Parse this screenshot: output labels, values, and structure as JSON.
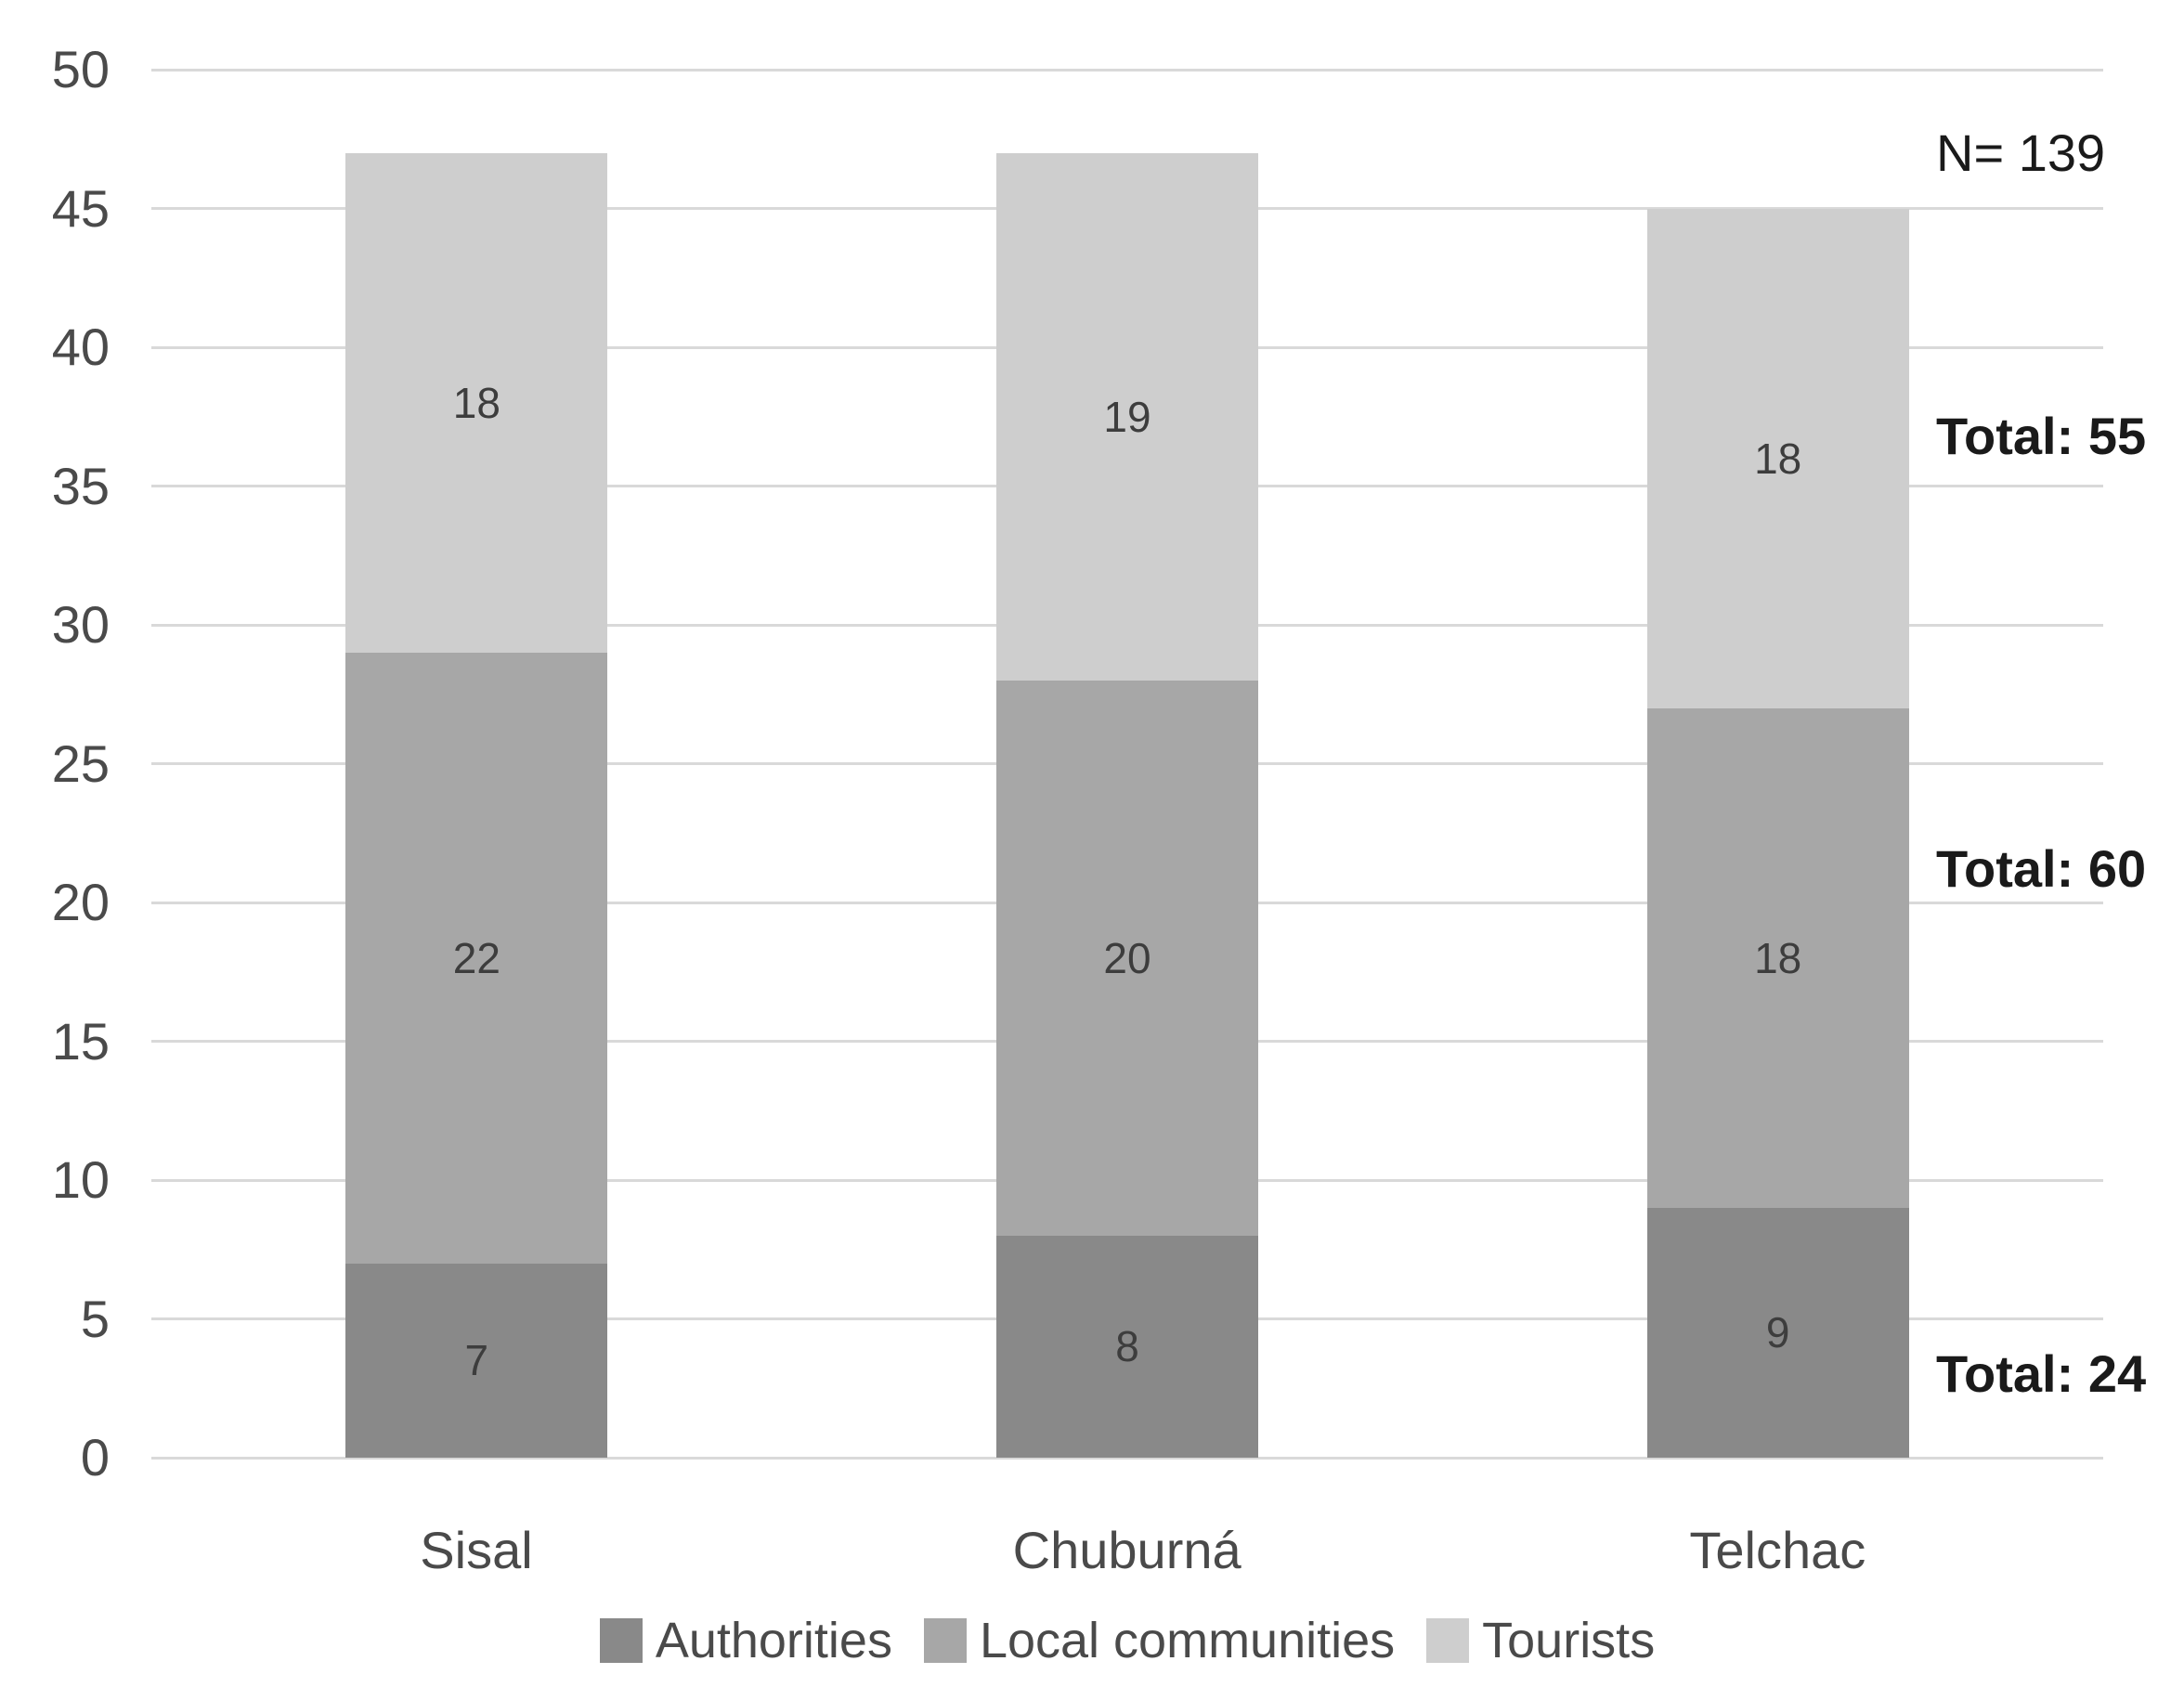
{
  "chart_data": {
    "type": "bar",
    "stacked": true,
    "title": "",
    "categories": [
      "Sisal",
      "Chuburná",
      "Telchac"
    ],
    "series": [
      {
        "name": "Authorities",
        "values": [
          7,
          8,
          9
        ],
        "total": 24,
        "color": "#898989"
      },
      {
        "name": "Local communities",
        "values": [
          22,
          20,
          18
        ],
        "total": 60,
        "color": "#a7a7a7"
      },
      {
        "name": "Tourists",
        "values": [
          18,
          19,
          18
        ],
        "total": 55,
        "color": "#cecece"
      }
    ],
    "category_totals": [
      47,
      47,
      45
    ],
    "ylim": [
      0,
      50
    ],
    "ytick_step": 5,
    "yticks": [
      0,
      5,
      10,
      15,
      20,
      25,
      30,
      35,
      40,
      45,
      50
    ],
    "grid": true,
    "legend_position": "bottom",
    "annotations": [
      {
        "text": "N= 139",
        "y_value": 47.0,
        "bold": false
      },
      {
        "text": "Total: 55",
        "y_value": 36.8,
        "bold": true
      },
      {
        "text": "Total: 60",
        "y_value": 21.2,
        "bold": true
      },
      {
        "text": "Total: 24",
        "y_value": 3.0,
        "bold": true
      }
    ]
  },
  "colors": {
    "background": "#ffffff",
    "gridline": "#d9d9d9",
    "tick_label": "#4a4a4a",
    "bar_label": "#3d3d3d",
    "category_label": "#4a4a4a",
    "legend_label": "#4a4a4a",
    "annotation": "#1a1a1a"
  }
}
